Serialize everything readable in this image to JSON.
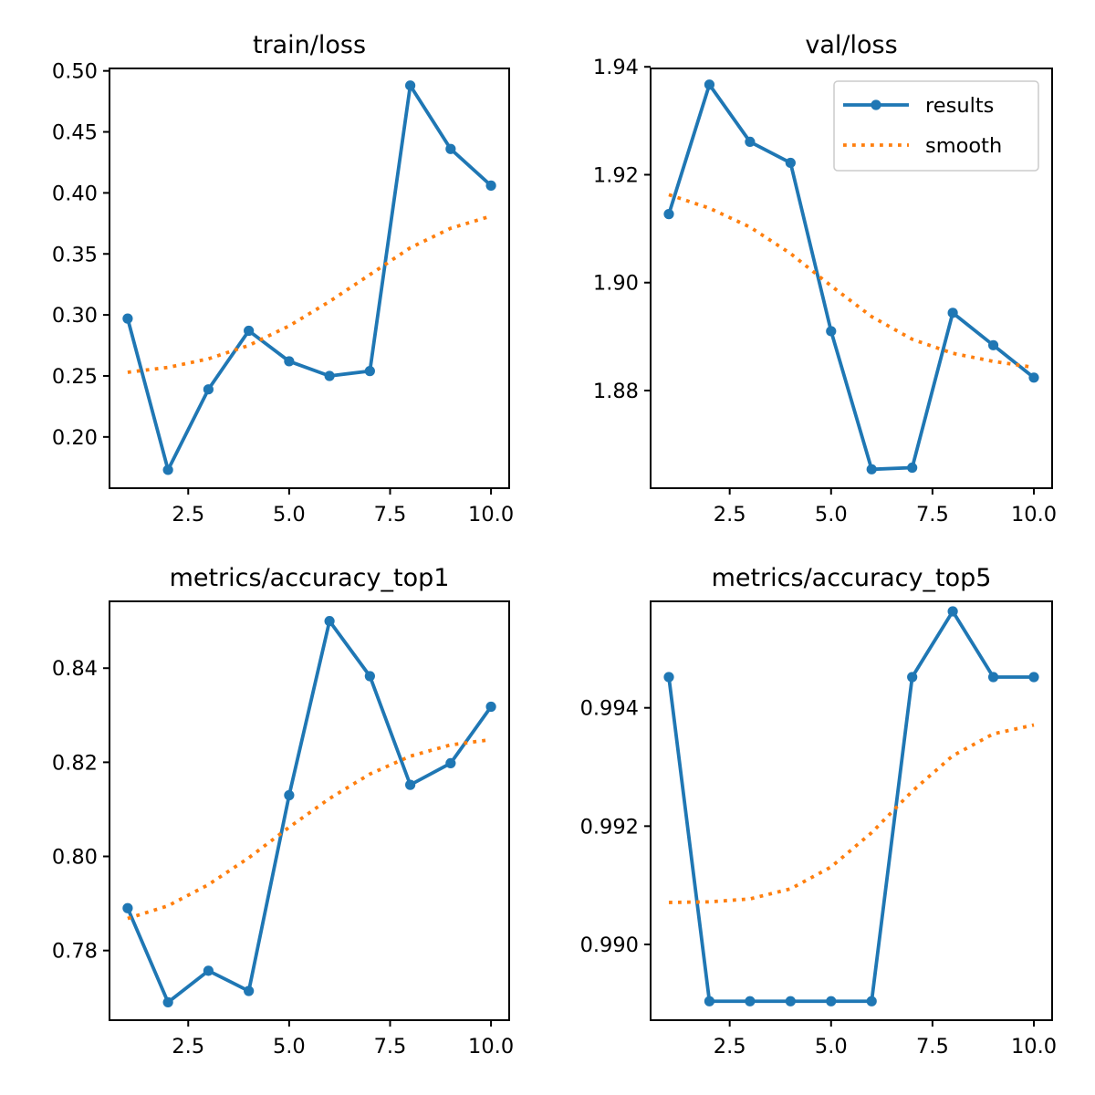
{
  "colors": {
    "results": "#1f77b4",
    "smooth": "#ff7f0e",
    "axes": "#000000",
    "background": "#ffffff"
  },
  "chart_data": [
    {
      "type": "line",
      "title": "train/loss",
      "xlabel": "",
      "ylabel": "",
      "x": [
        1,
        2,
        3,
        4,
        5,
        6,
        7,
        8,
        9,
        10
      ],
      "xlim": [
        0.55,
        10.45
      ],
      "ylim": [
        0.158,
        0.502
      ],
      "xticks": [
        2.5,
        5.0,
        7.5,
        10.0
      ],
      "xtick_labels": [
        "2.5",
        "5.0",
        "7.5",
        "10.0"
      ],
      "yticks": [
        0.2,
        0.25,
        0.3,
        0.35,
        0.4,
        0.45,
        0.5
      ],
      "ytick_labels": [
        "0.20",
        "0.25",
        "0.30",
        "0.35",
        "0.40",
        "0.45",
        "0.50"
      ],
      "grid": false,
      "series": [
        {
          "name": "results",
          "style": "solid-markers",
          "values": [
            0.297,
            0.173,
            0.239,
            0.287,
            0.262,
            0.25,
            0.254,
            0.488,
            0.436,
            0.406
          ]
        },
        {
          "name": "smooth",
          "style": "dotted",
          "values": [
            0.253,
            0.257,
            0.264,
            0.275,
            0.291,
            0.311,
            0.333,
            0.355,
            0.371,
            0.381
          ]
        }
      ]
    },
    {
      "type": "line",
      "title": "val/loss",
      "xlabel": "",
      "ylabel": "",
      "x": [
        1,
        2,
        3,
        4,
        5,
        6,
        7,
        8,
        9,
        10
      ],
      "xlim": [
        0.55,
        10.45
      ],
      "ylim": [
        1.8619,
        1.9397
      ],
      "xticks": [
        2.5,
        5.0,
        7.5,
        10.0
      ],
      "xtick_labels": [
        "2.5",
        "5.0",
        "7.5",
        "10.0"
      ],
      "yticks": [
        1.88,
        1.9,
        1.92,
        1.94
      ],
      "ytick_labels": [
        "1.88",
        "1.90",
        "1.92",
        "1.94"
      ],
      "grid": false,
      "legend": {
        "placement": "upper-right",
        "entries": [
          "results",
          "smooth"
        ]
      },
      "series": [
        {
          "name": "results",
          "style": "solid-markers",
          "values": [
            1.9127,
            1.9367,
            1.9261,
            1.9222,
            1.891,
            1.8654,
            1.8657,
            1.8944,
            1.8884,
            1.8824
          ]
        },
        {
          "name": "smooth",
          "style": "dotted",
          "values": [
            1.9163,
            1.9138,
            1.9103,
            1.9054,
            1.8994,
            1.8937,
            1.8895,
            1.8869,
            1.8854,
            1.8843
          ]
        }
      ]
    },
    {
      "type": "line",
      "title": "metrics/accuracy_top1",
      "xlabel": "",
      "ylabel": "",
      "x": [
        1,
        2,
        3,
        4,
        5,
        6,
        7,
        8,
        9,
        10
      ],
      "xlim": [
        0.55,
        10.45
      ],
      "ylim": [
        0.7652,
        0.8542
      ],
      "xticks": [
        2.5,
        5.0,
        7.5,
        10.0
      ],
      "xtick_labels": [
        "2.5",
        "5.0",
        "7.5",
        "10.0"
      ],
      "yticks": [
        0.78,
        0.8,
        0.82,
        0.84
      ],
      "ytick_labels": [
        "0.78",
        "0.80",
        "0.82",
        "0.84"
      ],
      "grid": false,
      "series": [
        {
          "name": "results",
          "style": "solid-markers",
          "values": [
            0.789,
            0.769,
            0.7757,
            0.7714,
            0.813,
            0.85,
            0.8383,
            0.8152,
            0.8198,
            0.8318
          ]
        },
        {
          "name": "smooth",
          "style": "dotted",
          "values": [
            0.7868,
            0.7895,
            0.794,
            0.7997,
            0.8062,
            0.8123,
            0.8175,
            0.8213,
            0.8237,
            0.8248
          ]
        }
      ]
    },
    {
      "type": "line",
      "title": "metrics/accuracy_top5",
      "xlabel": "",
      "ylabel": "",
      "x": [
        1,
        2,
        3,
        4,
        5,
        6,
        7,
        8,
        9,
        10
      ],
      "xlim": [
        0.55,
        10.45
      ],
      "ylim": [
        0.98872,
        0.9958
      ],
      "xticks": [
        2.5,
        5.0,
        7.5,
        10.0
      ],
      "xtick_labels": [
        "2.5",
        "5.0",
        "7.5",
        "10.0"
      ],
      "yticks": [
        0.99,
        0.992,
        0.994
      ],
      "ytick_labels": [
        "0.990",
        "0.992",
        "0.994"
      ],
      "grid": false,
      "series": [
        {
          "name": "results",
          "style": "solid-markers",
          "values": [
            0.99452,
            0.98904,
            0.98904,
            0.98904,
            0.98904,
            0.98904,
            0.99452,
            0.99563,
            0.99452,
            0.99452
          ]
        },
        {
          "name": "smooth",
          "style": "dotted",
          "values": [
            0.99071,
            0.99072,
            0.99077,
            0.99094,
            0.99131,
            0.99189,
            0.99259,
            0.99319,
            0.99356,
            0.99371
          ]
        }
      ]
    }
  ]
}
